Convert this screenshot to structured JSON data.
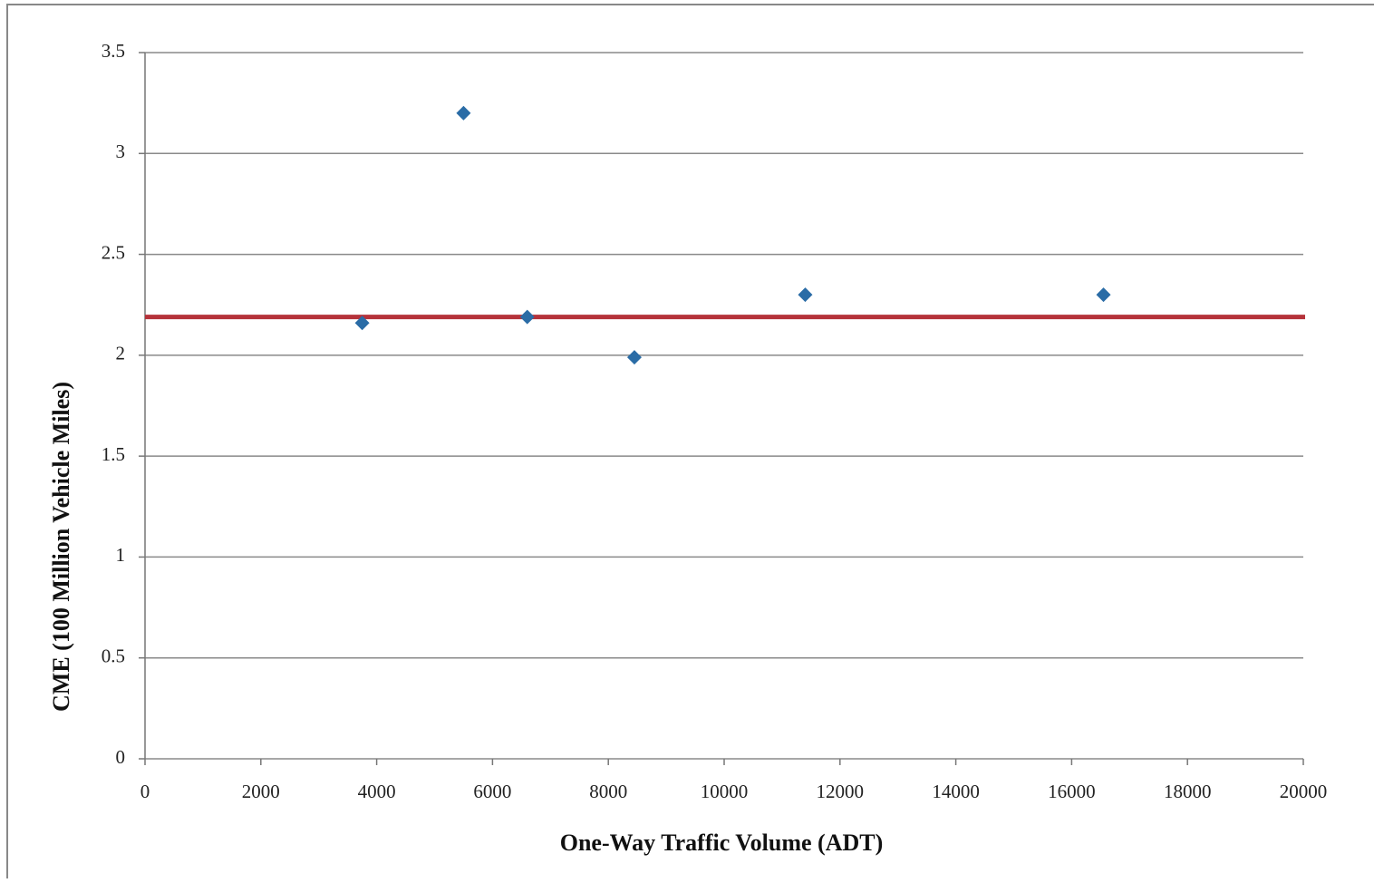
{
  "chart_data": {
    "type": "scatter",
    "x_label": "One-Way Traffic Volume (ADT)",
    "y_label": "CME (100 Million Vehicle Miles)",
    "x": [
      3750,
      5500,
      6600,
      8450,
      11400,
      16550
    ],
    "values": [
      2.16,
      3.2,
      2.19,
      1.99,
      2.3,
      2.3
    ],
    "color": "#2a6ca6",
    "hline": {
      "value": 2.19,
      "color": "#b5323a"
    },
    "xlim": [
      0,
      20000
    ],
    "xticks": [
      0,
      2000,
      4000,
      6000,
      8000,
      10000,
      12000,
      14000,
      16000,
      18000,
      20000
    ],
    "ylim": [
      0,
      3.5
    ],
    "yticks": [
      0,
      0.5,
      1,
      1.5,
      2,
      2.5,
      3,
      3.5
    ],
    "grid": true
  }
}
